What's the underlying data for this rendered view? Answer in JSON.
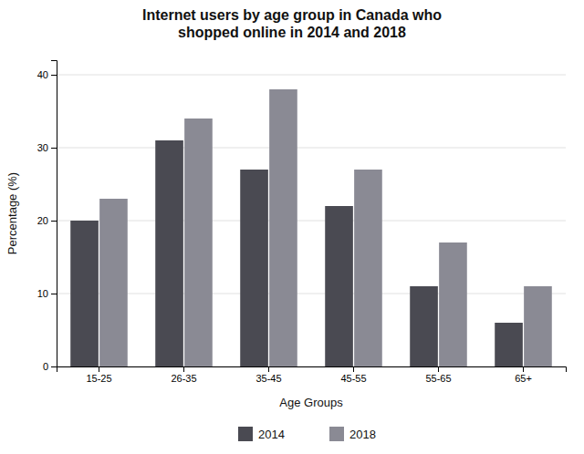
{
  "chart_data": {
    "type": "bar",
    "title": "Internet users by age group in Canada who\nshopped online in 2014 and 2018",
    "xlabel": "Age Groups",
    "ylabel": "Percentage (%)",
    "categories": [
      "15-25",
      "26-35",
      "35-45",
      "45-55",
      "55-65",
      "65+"
    ],
    "series": [
      {
        "name": "2014",
        "color": "#4a4a52",
        "values": [
          20,
          31,
          27,
          22,
          11,
          6
        ]
      },
      {
        "name": "2018",
        "color": "#8a8a94",
        "values": [
          23,
          34,
          38,
          27,
          17,
          11
        ]
      }
    ],
    "ylim": [
      0,
      42
    ],
    "yticks": [
      0,
      10,
      20,
      30,
      40
    ],
    "grid": true,
    "legend": "bottom"
  }
}
